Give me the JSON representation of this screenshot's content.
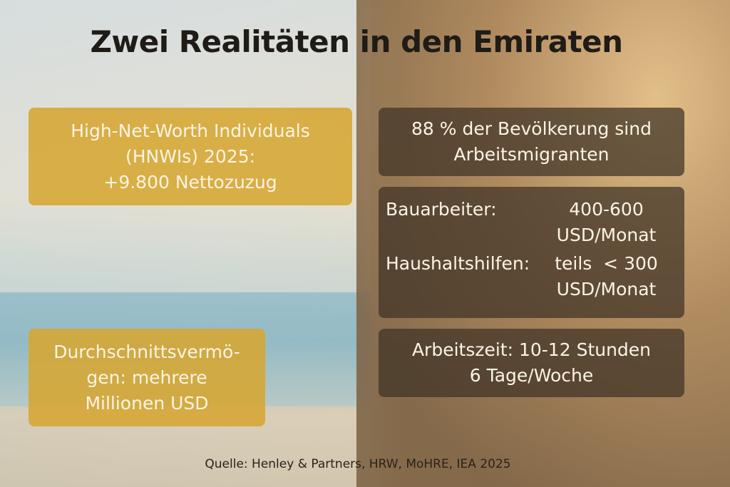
{
  "title": "Zwei Realitäten in den Emiraten",
  "left": {
    "hnwi": [
      "High-Net-Worth Individuals",
      "(HNWIs) 2025:",
      "+9.800 Nettozuzug"
    ],
    "wealth": [
      "Durchschnittsvermö-",
      "gen: mehrere",
      "Millionen USD"
    ]
  },
  "right": {
    "migrants": [
      "88 % der Bevölkerung sind",
      "Arbeitsmigranten"
    ],
    "wages": [
      {
        "label": "Bauarbeiter:",
        "value": [
          "400-600",
          "USD/Monat"
        ]
      },
      {
        "label": "Haushaltshilfen:",
        "value": [
          "teils  < 300",
          "USD/Monat"
        ]
      }
    ],
    "hours": [
      "Arbeitszeit: 10-12 Stunden",
      "6 Tage/Woche"
    ]
  },
  "source": "Quelle: Henley & Partners, HRW, MoHRE, IEA 2025",
  "colors": {
    "gold_box": "#d6a632",
    "dark_box": "#3e3226",
    "title": "#1f1b17"
  }
}
